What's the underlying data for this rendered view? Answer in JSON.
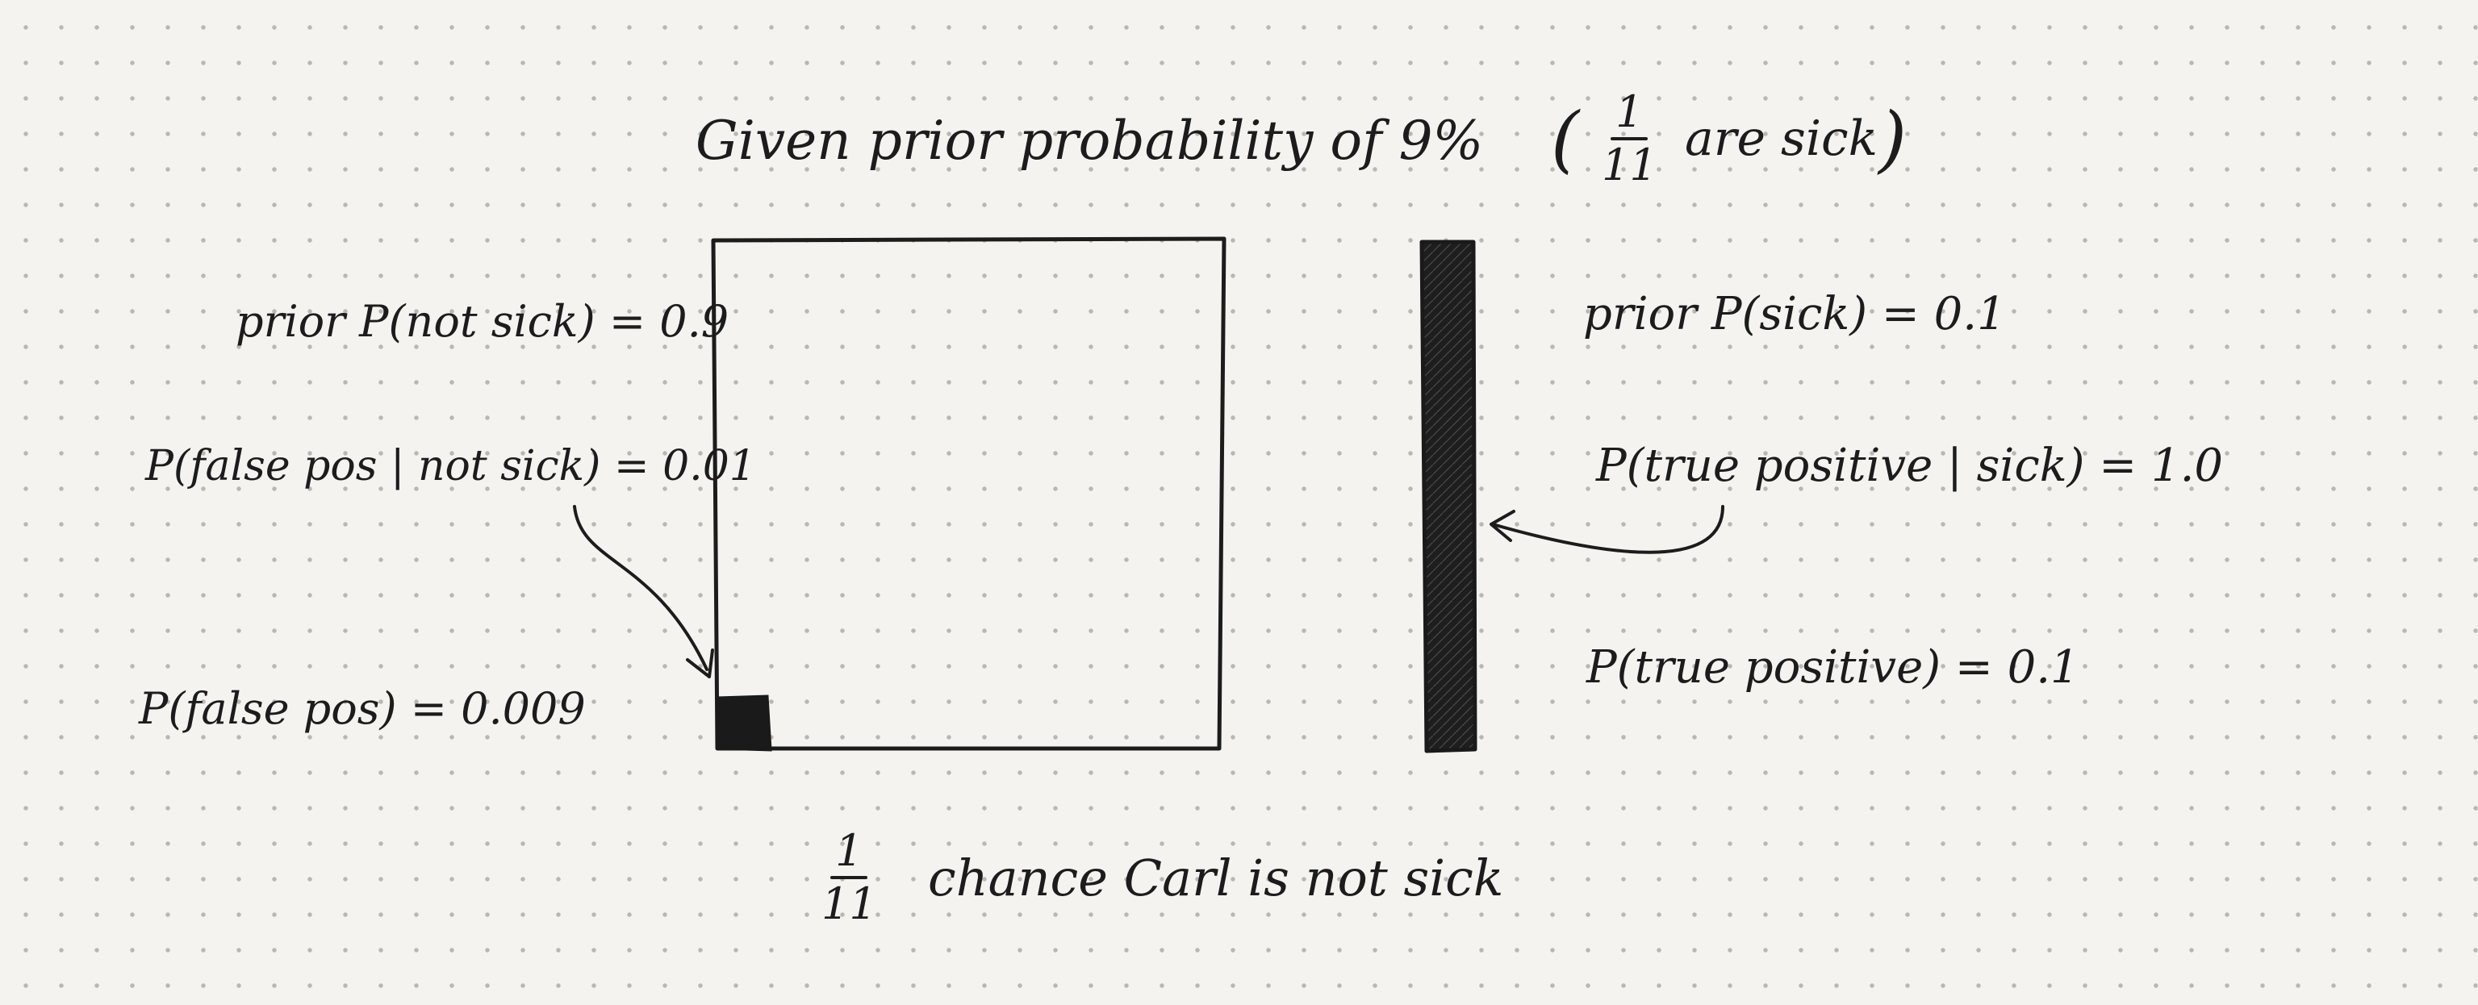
{
  "title": {
    "prefix": "Given prior probability of 9%",
    "paren_open": "(",
    "fraction": {
      "numerator": "1",
      "denominator": "11"
    },
    "suffix": "are sick",
    "paren_close": ")"
  },
  "left_labels": {
    "prior_not_sick": "prior P(not sick) = 0.9",
    "false_pos_given_not_sick": "P(false pos | not sick) = 0.01",
    "false_pos": "P(false pos) = 0.009"
  },
  "right_labels": {
    "prior_sick": "prior P(sick) = 0.1",
    "true_pos_given_sick": "P(true positive | sick) = 1.0",
    "true_pos": "P(true positive) = 0.1"
  },
  "bottom": {
    "fraction": {
      "numerator": "1",
      "denominator": "11"
    },
    "text": "chance Carl is not sick"
  },
  "colors": {
    "ink": "#1c1c1c",
    "paper": "#f4f3f0"
  }
}
